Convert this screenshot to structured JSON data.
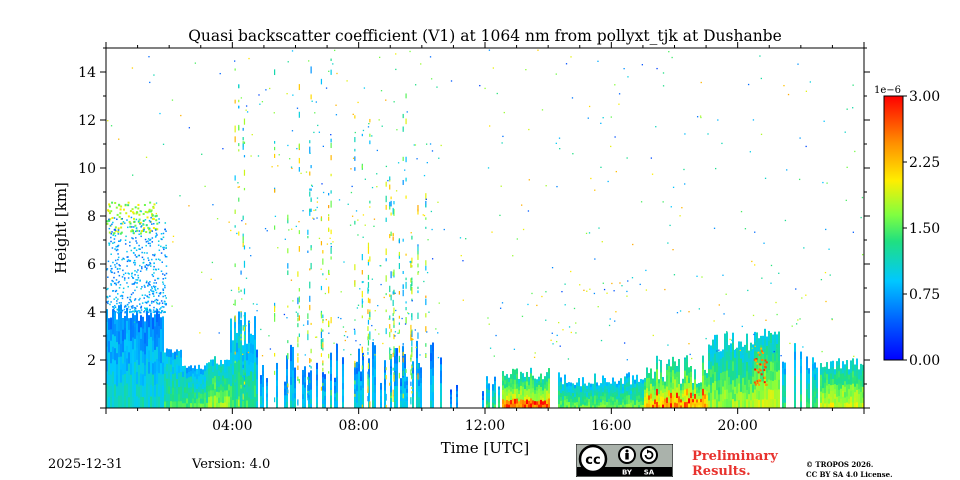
{
  "chart_data": {
    "type": "heatmap",
    "title": "Quasi backscatter coefficient (V1) at 1064 nm from pollyxt_tjk at Dushanbe",
    "xlabel": "Time [UTC]",
    "ylabel": "Height [km]",
    "x_range_hours": [
      0,
      24
    ],
    "y_range_km": [
      0,
      15
    ],
    "x_ticks": [
      {
        "value": 4,
        "label": "04:00"
      },
      {
        "value": 8,
        "label": "08:00"
      },
      {
        "value": 12,
        "label": "12:00"
      },
      {
        "value": 16,
        "label": "16:00"
      },
      {
        "value": 20,
        "label": "20:00"
      }
    ],
    "y_ticks": [
      {
        "value": 2,
        "label": "2"
      },
      {
        "value": 4,
        "label": "4"
      },
      {
        "value": 6,
        "label": "6"
      },
      {
        "value": 8,
        "label": "8"
      },
      {
        "value": 10,
        "label": "10"
      },
      {
        "value": 12,
        "label": "12"
      },
      {
        "value": 14,
        "label": "14"
      }
    ],
    "colorbar": {
      "min": 0.0,
      "max": 3.0,
      "scale_label": "1e−6",
      "colormap": "jet",
      "ticks": [
        {
          "value": 0.0,
          "label": "0.00"
        },
        {
          "value": 0.75,
          "label": "0.75"
        },
        {
          "value": 1.5,
          "label": "1.50"
        },
        {
          "value": 2.25,
          "label": "2.25"
        },
        {
          "value": 3.0,
          "label": "3.00"
        }
      ]
    },
    "features": [
      {
        "name": "night aerosol layer",
        "t_start": 0.0,
        "t_end": 1.8,
        "top_km": 4.0,
        "level": 0.35
      },
      {
        "name": "elevated layer",
        "t_start": 0.0,
        "t_end": 1.5,
        "bottom_km": 7.4,
        "top_km": 8.6,
        "level": 0.5
      },
      {
        "name": "low layer",
        "t_start": 1.8,
        "t_end": 3.9,
        "top_km": 2.4,
        "level": 0.4
      },
      {
        "name": "intermittent profiles",
        "t_start": 3.9,
        "t_end": 10.6,
        "top_km": 2.5,
        "level": 0.3
      },
      {
        "name": "afternoon boundary layer",
        "t_start": 12.5,
        "t_end": 14.0,
        "top_km": 1.5,
        "level": 0.8
      },
      {
        "name": "evening aerosol layer",
        "t_start": 14.3,
        "t_end": 19.0,
        "top_km": 1.4,
        "level": 0.7
      },
      {
        "name": "boundary layer with cloud",
        "t_start": 19.0,
        "t_end": 21.3,
        "top_km": 3.2,
        "level": 0.6
      },
      {
        "name": "late layer",
        "t_start": 22.6,
        "t_end": 24.0,
        "top_km": 2.0,
        "level": 0.6
      }
    ]
  },
  "footer": {
    "date": "2025-12-31",
    "version": "Version: 4.0",
    "preliminary_line1": "Preliminary",
    "preliminary_line2": "Results.",
    "copyright_line1": "© TROPOS 2026.",
    "copyright_line2": "CC BY SA 4.0 License.",
    "license_badge": {
      "main": "cc",
      "by": "BY",
      "sa": "SA"
    }
  },
  "colors": {
    "background": "#ffffff",
    "axis": "#000000",
    "preliminary": "#e8322e",
    "badge_bg": "#aab2ab",
    "badge_dark": "#000000"
  }
}
